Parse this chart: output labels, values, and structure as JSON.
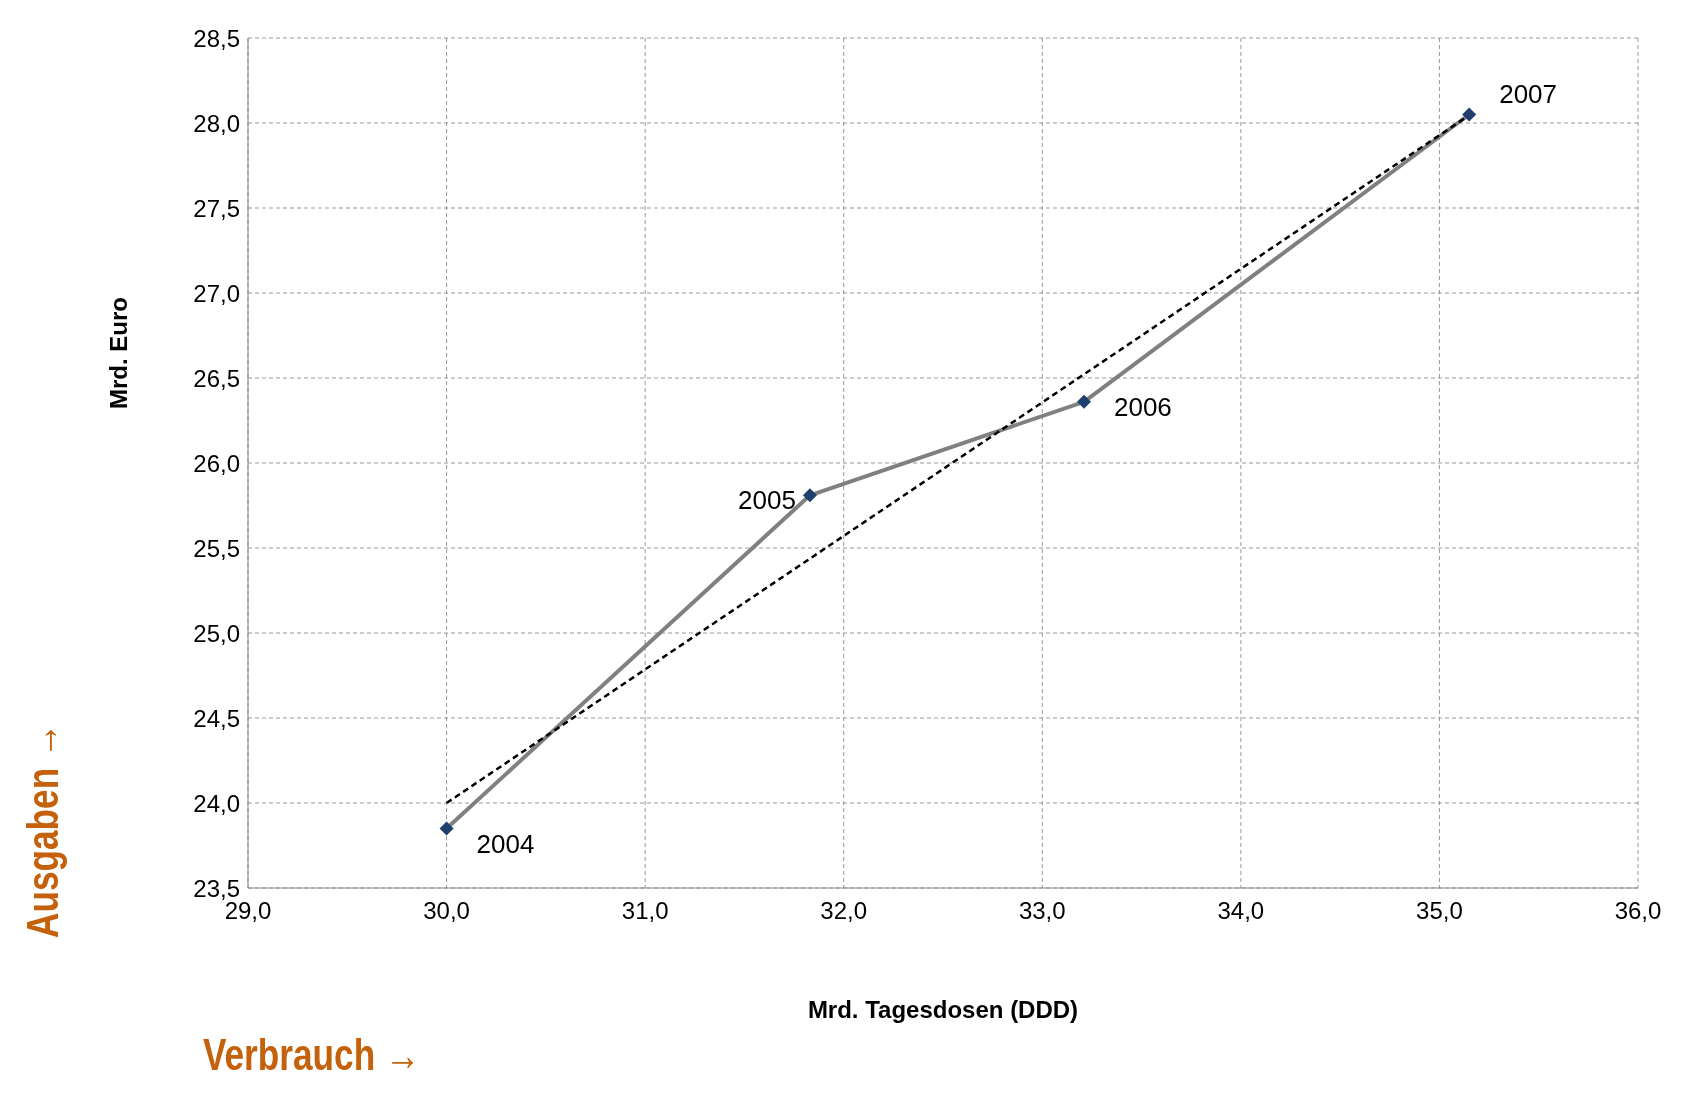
{
  "chart_data": {
    "type": "line",
    "xlabel": "Mrd. Tagesdosen (DDD)",
    "ylabel": "Mrd. Euro",
    "annotations": [
      "Verbrauch →",
      "Ausgaben →",
      {
        "text": "2004",
        "x": 30.0,
        "y": 23.85
      },
      {
        "text": "2005",
        "x": 31.83,
        "y": 25.81
      },
      {
        "text": "2006",
        "x": 33.21,
        "y": 26.36
      },
      {
        "text": "2007",
        "x": 35.15,
        "y": 28.05
      }
    ],
    "xlim": [
      29,
      36
    ],
    "xticks": [
      {
        "value": 29,
        "label": "29,0"
      },
      {
        "value": 30,
        "label": "30,0"
      },
      {
        "value": 31,
        "label": "31,0"
      },
      {
        "value": 32,
        "label": "32,0"
      },
      {
        "value": 33,
        "label": "33,0"
      },
      {
        "value": 34,
        "label": "34,0"
      },
      {
        "value": 35,
        "label": "35,0"
      },
      {
        "value": 36,
        "label": "36,0"
      }
    ],
    "ylim": [
      23.5,
      28.5
    ],
    "yticks": [
      {
        "value": 23.5,
        "label": "23,5"
      },
      {
        "value": 24,
        "label": "24,0"
      },
      {
        "value": 24.5,
        "label": "24,5"
      },
      {
        "value": 25,
        "label": "25,0"
      },
      {
        "value": 25.5,
        "label": "25,5"
      },
      {
        "value": 26,
        "label": "26,0"
      },
      {
        "value": 26.5,
        "label": "26,5"
      },
      {
        "value": 27,
        "label": "27,0"
      },
      {
        "value": 27.5,
        "label": "27,5"
      },
      {
        "value": 28,
        "label": "28,0"
      },
      {
        "value": 28.5,
        "label": "28,5"
      }
    ],
    "grid": true,
    "series": [
      {
        "color": "#808080",
        "marker": "diamond",
        "line_style": "solid",
        "x": [
          30.0,
          31.83,
          33.21,
          35.15
        ],
        "values": [
          23.85,
          25.81,
          26.36,
          28.05
        ]
      },
      {
        "color": "#000000",
        "marker": "none",
        "line_style": "dashed",
        "x": [
          30.0,
          35.13
        ],
        "values": [
          24.0,
          28.03
        ]
      }
    ]
  }
}
